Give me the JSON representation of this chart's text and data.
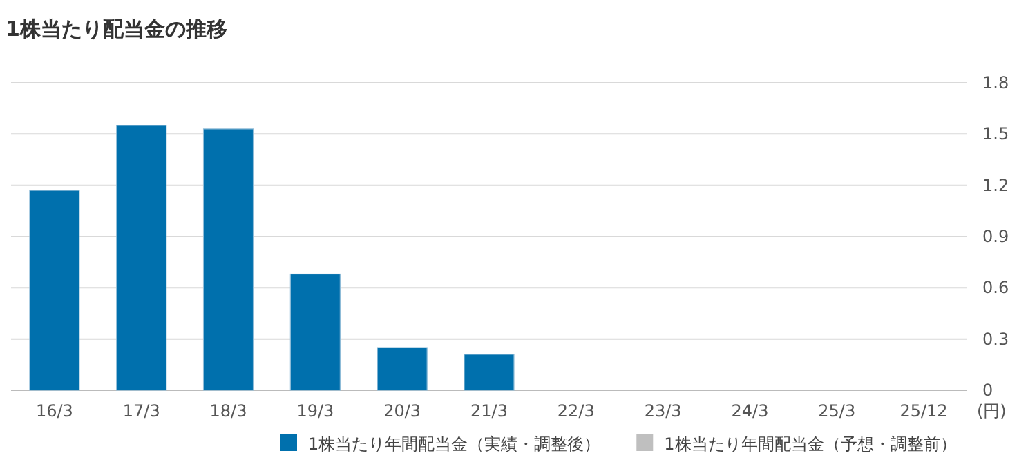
{
  "chart_data": {
    "type": "bar",
    "title": "1株当たり配当金の推移",
    "ylabel": "(円)",
    "categories": [
      "16/3",
      "17/3",
      "18/3",
      "19/3",
      "20/3",
      "21/3",
      "22/3",
      "23/3",
      "24/3",
      "25/3",
      "25/12"
    ],
    "series": [
      {
        "name": "1株当たり年間配当金（実績・調整後）",
        "color": "#0070ad",
        "values": [
          1.17,
          1.55,
          1.53,
          0.68,
          0.25,
          0.21,
          null,
          null,
          null,
          null,
          null
        ]
      },
      {
        "name": "1株当たり年間配当金（予想・調整前）",
        "color": "#bfbfbf",
        "values": [
          null,
          null,
          null,
          null,
          null,
          null,
          null,
          null,
          null,
          null,
          null
        ]
      }
    ],
    "ylim": [
      0,
      1.8
    ],
    "yticks": [
      0,
      0.3,
      0.6,
      0.9,
      1.2,
      1.5,
      1.8
    ],
    "grid": "y",
    "legend": "bottom"
  }
}
